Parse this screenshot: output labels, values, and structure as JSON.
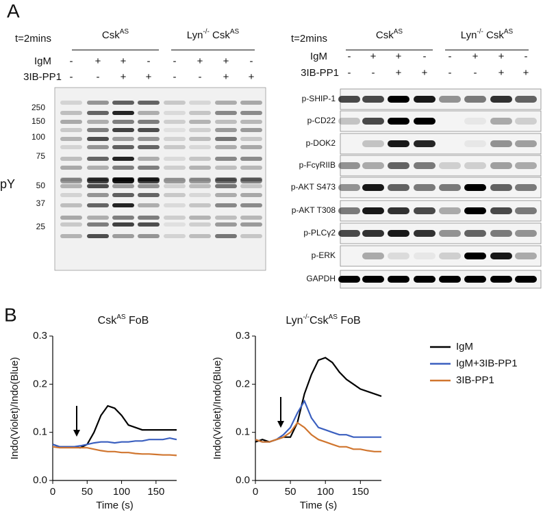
{
  "panel_a": {
    "label": "A",
    "left_blot": {
      "time": "t=2mins",
      "groups": [
        [
          {
            "text": "Csk"
          },
          {
            "text": "AS",
            "sup": true
          }
        ],
        [
          {
            "text": "Lyn"
          },
          {
            "text": "-/-",
            "sup": true
          },
          {
            "text": " Csk"
          },
          {
            "text": "AS",
            "sup": true
          }
        ]
      ],
      "treatments": [
        {
          "name": "IgM",
          "signs": [
            "-",
            "+",
            "+",
            "-",
            "-",
            "+",
            "+",
            "-"
          ]
        },
        {
          "name": "3IB-PP1",
          "signs": [
            "-",
            "-",
            "+",
            "+",
            "-",
            "-",
            "+",
            "+"
          ]
        }
      ],
      "markers": [
        250,
        150,
        100,
        75,
        50,
        37,
        25
      ],
      "antibody": "pY",
      "lane_signal": [
        0.35,
        0.8,
        1,
        0.8,
        0.2,
        0.3,
        0.6,
        0.5
      ]
    },
    "right_blot": {
      "time": "t=2mins",
      "groups": [
        [
          {
            "text": "Csk"
          },
          {
            "text": "AS",
            "sup": true
          }
        ],
        [
          {
            "text": "Lyn"
          },
          {
            "text": "-/-",
            "sup": true
          },
          {
            "text": " Csk"
          },
          {
            "text": "AS",
            "sup": true
          }
        ]
      ],
      "treatments": [
        {
          "name": "IgM",
          "signs": [
            "-",
            "+",
            "+",
            "-",
            "-",
            "+",
            "+",
            "-"
          ]
        },
        {
          "name": "3IB-PP1",
          "signs": [
            "-",
            "-",
            "+",
            "+",
            "-",
            "-",
            "+",
            "+"
          ]
        }
      ],
      "rows": [
        {
          "name": "p-SHIP-1",
          "bands": [
            0.7,
            0.7,
            1,
            0.9,
            0.4,
            0.5,
            0.8,
            0.6
          ]
        },
        {
          "name": "p-CD22",
          "bands": [
            0.2,
            0.7,
            1,
            1,
            0,
            0.05,
            0.3,
            0.15
          ]
        },
        {
          "name": "p-DOK2",
          "bands": [
            0,
            0.2,
            0.9,
            0.85,
            0,
            0.05,
            0.4,
            0.35
          ]
        },
        {
          "name": "p-FcγRIIB",
          "bands": [
            0.4,
            0.3,
            0.6,
            0.5,
            0.15,
            0.15,
            0.35,
            0.3
          ]
        },
        {
          "name": "p-AKT S473",
          "bands": [
            0.4,
            0.9,
            0.6,
            0.5,
            0.5,
            1,
            0.6,
            0.5
          ]
        },
        {
          "name": "p-AKT T308",
          "bands": [
            0.5,
            0.9,
            0.8,
            0.7,
            0.3,
            1,
            0.7,
            0.5
          ]
        },
        {
          "name": "p-PLCγ2",
          "bands": [
            0.7,
            0.8,
            0.9,
            0.8,
            0.4,
            0.6,
            0.5,
            0.4
          ]
        },
        {
          "name": "p-ERK",
          "bands": [
            0,
            0.3,
            0.1,
            0.05,
            0.15,
            1,
            0.9,
            0.3
          ]
        },
        {
          "name": "GAPDH",
          "bands": [
            1,
            1,
            1,
            1,
            1,
            1,
            1,
            1
          ]
        }
      ]
    }
  },
  "panel_b": {
    "label": "B"
  },
  "chart_data": [
    {
      "type": "line",
      "title": [
        {
          "text": "Csk"
        },
        {
          "text": "AS",
          "sup": true
        },
        {
          "text": "  FoB"
        }
      ],
      "x_label": "Time (s)",
      "y_label": "Indo(Violet)/Indo(Blue)",
      "x": [
        0,
        10,
        20,
        30,
        40,
        50,
        60,
        70,
        80,
        90,
        100,
        110,
        120,
        130,
        140,
        150,
        160,
        170,
        180
      ],
      "series": [
        {
          "name": "IgM",
          "color": "#000000",
          "values": [
            0.075,
            0.07,
            0.07,
            0.07,
            0.068,
            0.075,
            0.1,
            0.135,
            0.155,
            0.15,
            0.135,
            0.115,
            0.11,
            0.105,
            0.105,
            0.105,
            0.105,
            0.105,
            0.105
          ]
        },
        {
          "name": "IgM+3IB-PP1",
          "color": "#3a5fbf",
          "values": [
            0.075,
            0.07,
            0.07,
            0.07,
            0.072,
            0.075,
            0.078,
            0.08,
            0.08,
            0.078,
            0.08,
            0.08,
            0.082,
            0.082,
            0.085,
            0.085,
            0.085,
            0.088,
            0.085
          ]
        },
        {
          "name": "3IB-PP1",
          "color": "#d0752e",
          "values": [
            0.07,
            0.068,
            0.068,
            0.068,
            0.068,
            0.068,
            0.065,
            0.062,
            0.06,
            0.06,
            0.058,
            0.058,
            0.056,
            0.055,
            0.055,
            0.054,
            0.053,
            0.053,
            0.052
          ]
        }
      ],
      "xlim": [
        0,
        180
      ],
      "ylim": [
        0,
        0.3
      ],
      "xticks": [
        0,
        50,
        100,
        150
      ],
      "yticks": [
        {
          "value": 0,
          "label": "0.0"
        },
        {
          "value": 0.1,
          "label": "0.1"
        },
        {
          "value": 0.2,
          "label": "0.2"
        },
        {
          "value": 0.3,
          "label": "0.3"
        }
      ]
    },
    {
      "type": "line",
      "title": [
        {
          "text": "Lyn"
        },
        {
          "text": "-/-",
          "sup": true
        },
        {
          "text": "Csk"
        },
        {
          "text": "AS",
          "sup": true
        },
        {
          "text": "  FoB"
        }
      ],
      "x_label": "Time (s)",
      "y_label": "Indo(Violet)/Indo(Blue)",
      "x": [
        0,
        10,
        20,
        30,
        40,
        50,
        60,
        70,
        80,
        90,
        100,
        110,
        120,
        130,
        140,
        150,
        160,
        170,
        180
      ],
      "series": [
        {
          "color": "#000000",
          "values": [
            0.08,
            0.085,
            0.08,
            0.085,
            0.09,
            0.09,
            0.12,
            0.18,
            0.22,
            0.25,
            0.255,
            0.245,
            0.225,
            0.21,
            0.2,
            0.19,
            0.185,
            0.18,
            0.175
          ]
        },
        {
          "color": "#3a5fbf",
          "values": [
            0.085,
            0.08,
            0.08,
            0.085,
            0.095,
            0.11,
            0.14,
            0.165,
            0.13,
            0.11,
            0.105,
            0.1,
            0.095,
            0.095,
            0.09,
            0.09,
            0.09,
            0.09,
            0.09
          ]
        },
        {
          "color": "#d0752e",
          "values": [
            0.085,
            0.08,
            0.08,
            0.085,
            0.09,
            0.1,
            0.12,
            0.11,
            0.095,
            0.085,
            0.08,
            0.075,
            0.07,
            0.07,
            0.065,
            0.065,
            0.062,
            0.06,
            0.06
          ]
        }
      ],
      "xlim": [
        0,
        180
      ],
      "ylim": [
        0,
        0.3
      ],
      "xticks": [
        0,
        50,
        100,
        150
      ],
      "yticks": [
        {
          "value": 0,
          "label": "0.0"
        },
        {
          "value": 0.1,
          "label": "0.1"
        },
        {
          "value": 0.2,
          "label": "0.2"
        },
        {
          "value": 0.3,
          "label": "0.3"
        }
      ]
    }
  ]
}
